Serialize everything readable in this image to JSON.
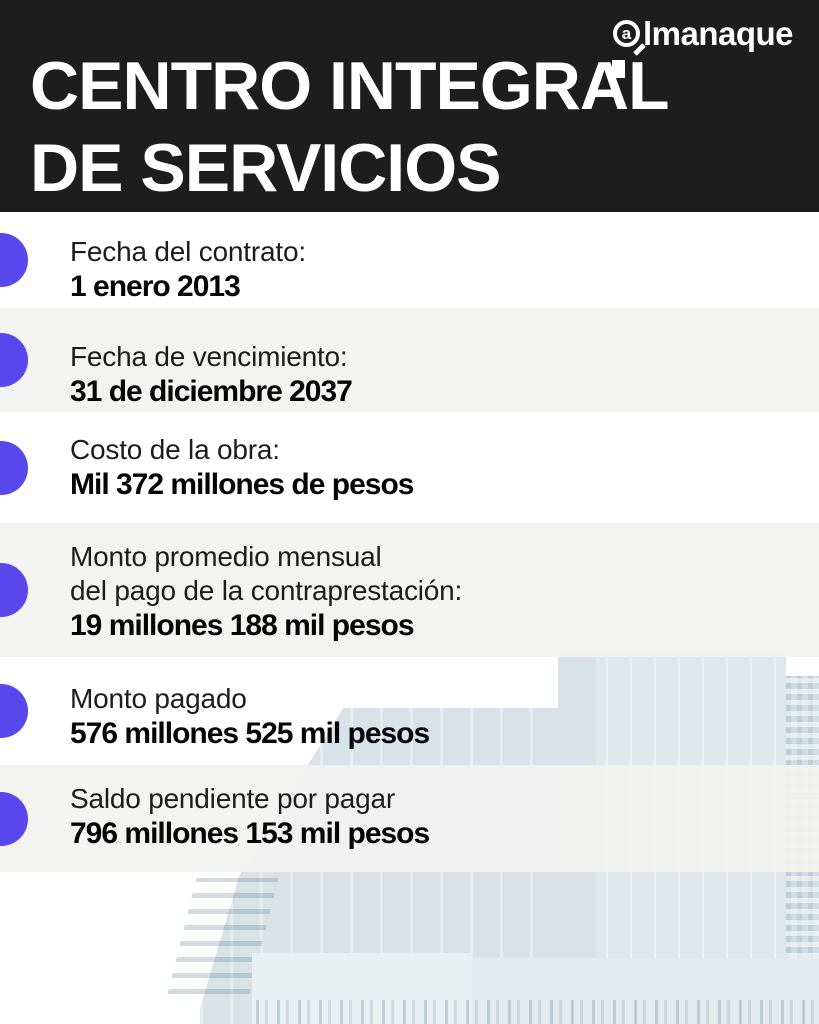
{
  "brand": {
    "logo_a": "a",
    "logo_text": "lmanaque",
    "full_name": "almanaque"
  },
  "header": {
    "title_line1": "CENTRO INTEGRAL",
    "title_line2": "DE SERVICIOS"
  },
  "items": [
    {
      "label_lines": [
        "Fecha del contrato:"
      ],
      "value": "1 enero 2013",
      "striped": false
    },
    {
      "label_lines": [
        "Fecha de vencimiento:"
      ],
      "value": "31 de diciembre 2037",
      "striped": true
    },
    {
      "label_lines": [
        "Costo de la obra:"
      ],
      "value": "Mil 372 millones de pesos",
      "striped": false
    },
    {
      "label_lines": [
        "Monto promedio mensual",
        "del pago de la contraprestación:"
      ],
      "value": "19 millones 188 mil pesos",
      "striped": true
    },
    {
      "label_lines": [
        "Monto pagado"
      ],
      "value": "576 millones 525 mil pesos",
      "striped": false
    },
    {
      "label_lines": [
        "Saldo pendiente por pagar"
      ],
      "value": "796 millones 153 mil pesos",
      "striped": true
    }
  ],
  "icons": {
    "logo_magnifier": "magnifier-glass",
    "list_bullet": "filled-circle"
  },
  "colors": {
    "accent_bullet": "#5747EC",
    "header_bg": "#1D1D1D",
    "stripe_bg": "#F2F2F0",
    "title_text": "#FFFFFF",
    "body_text": "#1C1C1C",
    "photo_building": "#DEE8EA",
    "photo_crowd": "#9FB8C5"
  }
}
